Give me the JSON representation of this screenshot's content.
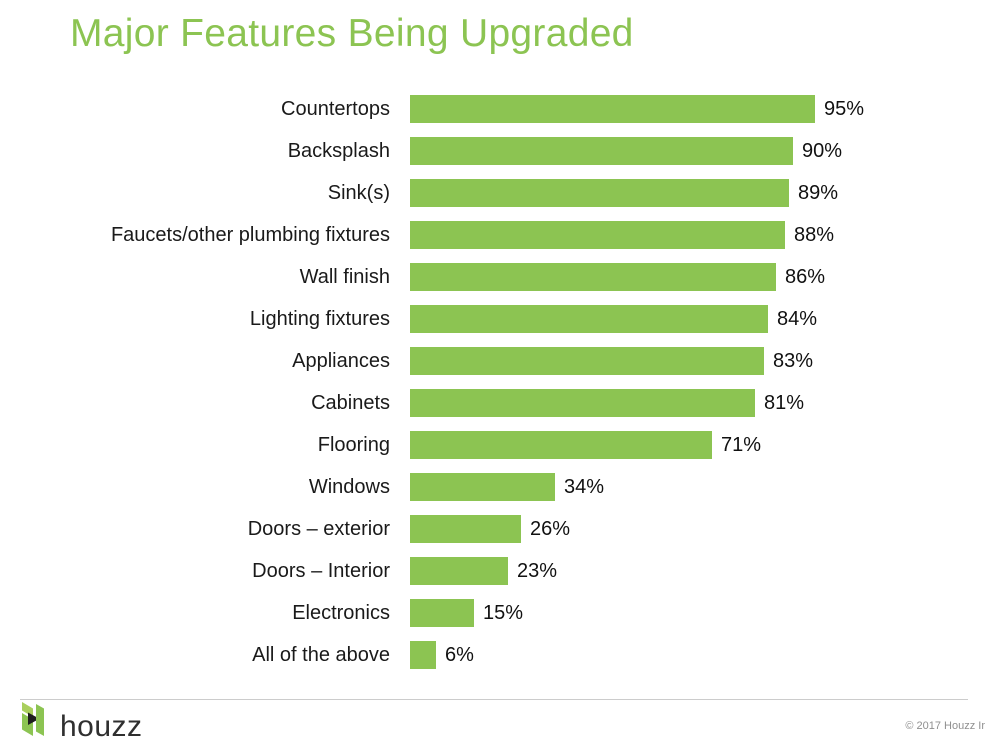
{
  "title": "Major Features Being Upgraded",
  "colors": {
    "accent_green": "#8CC452",
    "icon_light_green": "#A9CF5D",
    "label_text": "#1A1A1A",
    "divider_gray": "#CCCCCC",
    "copyright_gray": "#8F8F8F",
    "wordmark_dark": "#2F2F2F"
  },
  "chart_data": {
    "type": "bar",
    "orientation": "horizontal",
    "title": "Major Features Being Upgraded",
    "xlabel": "",
    "ylabel": "",
    "xlim": [
      0,
      100
    ],
    "grid": false,
    "bar_color": "#8CC452",
    "value_suffix": "%",
    "value_label_position": "outside-end",
    "categories": [
      "Countertops",
      "Backsplash",
      "Sink(s)",
      "Faucets/other plumbing fixtures",
      "Wall finish",
      "Lighting fixtures",
      "Appliances",
      "Cabinets",
      "Flooring",
      "Windows",
      "Doors – exterior",
      "Doors – Interior",
      "Electronics",
      "All of the above"
    ],
    "values": [
      95,
      90,
      89,
      88,
      86,
      84,
      83,
      81,
      71,
      34,
      26,
      23,
      15,
      6
    ]
  },
  "footer": {
    "brand": "houzz",
    "copyright": "© 2017 Houzz Ir"
  }
}
